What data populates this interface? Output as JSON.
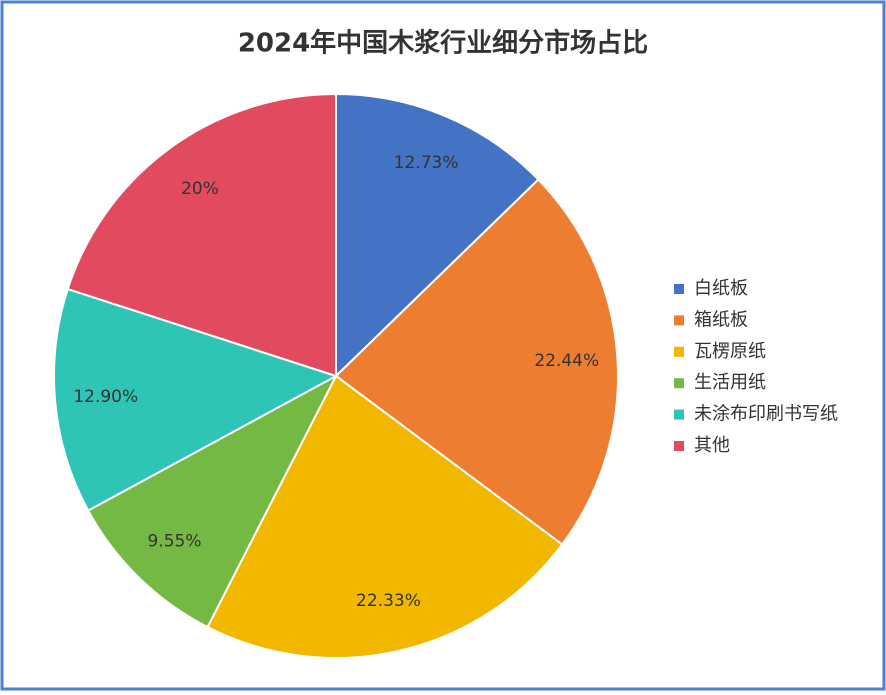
{
  "chart_data": {
    "type": "pie",
    "title": "2024年中国木浆行业细分市场占比",
    "categories": [
      "白纸板",
      "箱纸板",
      "瓦楞原纸",
      "生活用纸",
      "未涂布印刷书写纸",
      "其他"
    ],
    "values": [
      12.73,
      22.44,
      22.33,
      9.55,
      12.9,
      20
    ],
    "value_labels": [
      "12.73%",
      "22.44%",
      "22.33%",
      "9.55%",
      "12.90%",
      "20%"
    ],
    "colors": [
      "#4472c4",
      "#ed7d31",
      "#f2b800",
      "#74b944",
      "#2ec4b6",
      "#e24a60"
    ],
    "legend": "right"
  }
}
